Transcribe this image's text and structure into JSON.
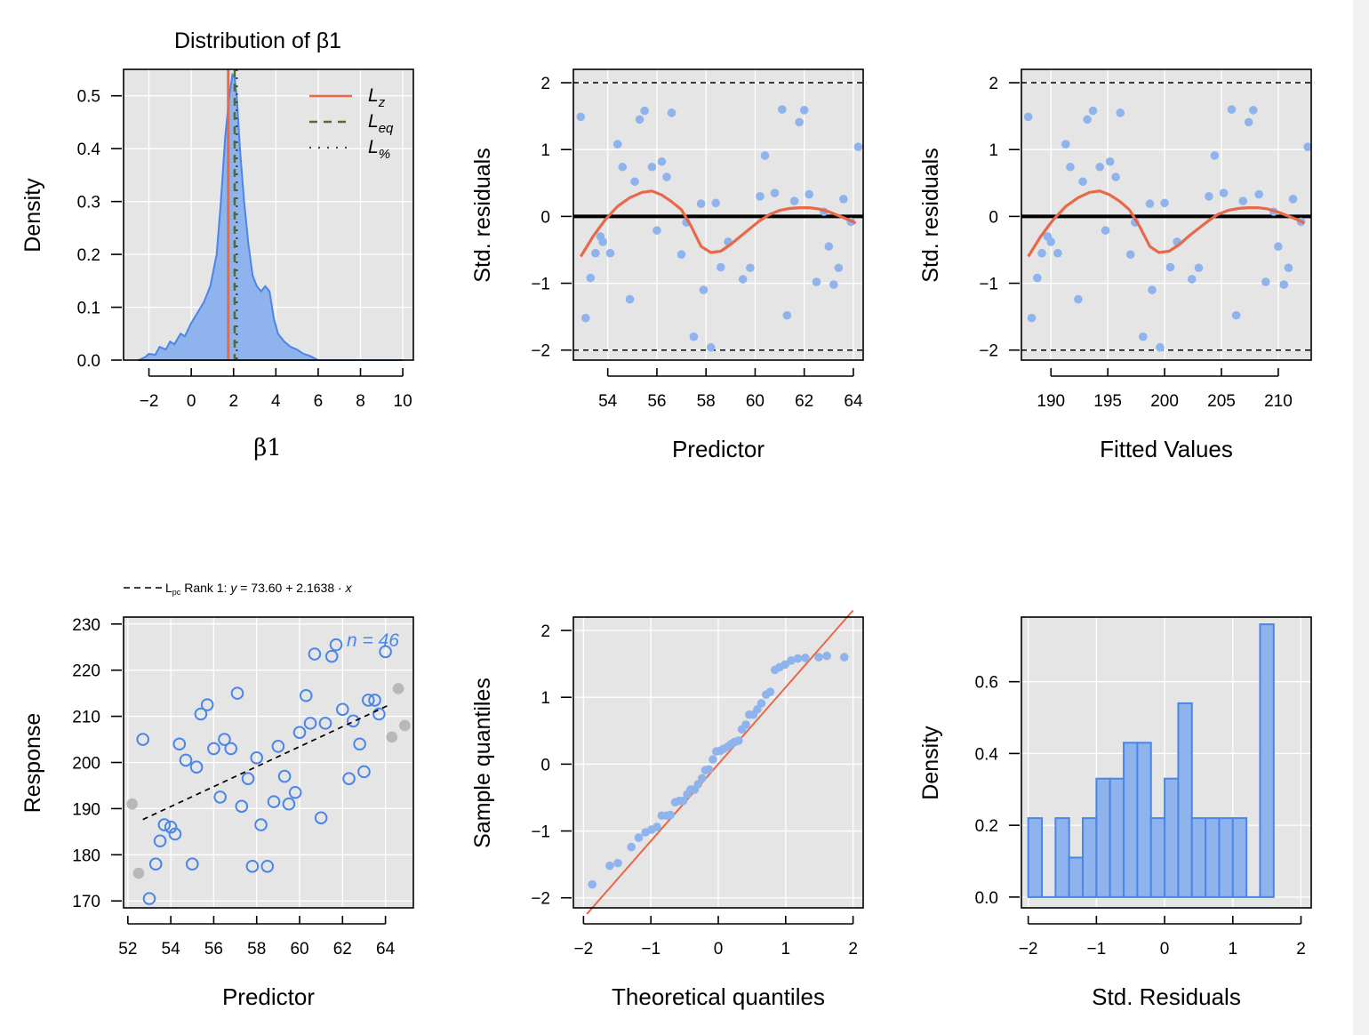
{
  "colors": {
    "panel_bg": "#e5e5e5",
    "grid": "#ffffff",
    "blue": "#4a86e8",
    "blue_fill": "#8fb3ec",
    "blue_point": "#8fb3ec",
    "red": "#e8684a",
    "olive": "#556b2f",
    "navy": "#2f4f6f",
    "gray_point": "#b8b8b8",
    "black": "#000000"
  },
  "chart_data": [
    {
      "id": "p1",
      "type": "area",
      "title": "Distribution of β1",
      "xlabel": "β1",
      "ylabel": "Density",
      "xlim": [
        -3.2,
        10.5
      ],
      "ylim": [
        0,
        0.55
      ],
      "xticks": [
        -2,
        0,
        2,
        4,
        6,
        8,
        10
      ],
      "xtick_labels": [
        "−2",
        "0",
        "2",
        "4",
        "6",
        "8",
        "10"
      ],
      "yticks": [
        0.0,
        0.1,
        0.2,
        0.3,
        0.4,
        0.5
      ],
      "ytick_labels": [
        "0.0",
        "0.1",
        "0.2",
        "0.3",
        "0.4",
        "0.5"
      ],
      "density_x": [
        -2.5,
        -2.2,
        -2.0,
        -1.7,
        -1.5,
        -1.2,
        -1.0,
        -0.8,
        -0.5,
        -0.3,
        0,
        0.3,
        0.6,
        0.9,
        1.2,
        1.4,
        1.6,
        1.8,
        1.95,
        2.05,
        2.15,
        2.3,
        2.5,
        2.7,
        2.9,
        3.1,
        3.3,
        3.5,
        3.7,
        3.9,
        4.1,
        4.4,
        4.7,
        5.0,
        5.3,
        5.6,
        5.9,
        6.0
      ],
      "density_y": [
        0.0,
        0.005,
        0.012,
        0.01,
        0.025,
        0.02,
        0.035,
        0.03,
        0.05,
        0.045,
        0.07,
        0.09,
        0.11,
        0.14,
        0.2,
        0.3,
        0.42,
        0.5,
        0.54,
        0.535,
        0.5,
        0.4,
        0.3,
        0.22,
        0.16,
        0.14,
        0.13,
        0.14,
        0.13,
        0.08,
        0.05,
        0.035,
        0.025,
        0.02,
        0.012,
        0.008,
        0.002,
        0.0
      ],
      "vlines": [
        {
          "name": "L_z",
          "x": 1.75,
          "style": "solid",
          "color": "#e8684a"
        },
        {
          "name": "L_eq",
          "x": 2.05,
          "style": "dashed",
          "color": "#556b2f"
        },
        {
          "name": "L_%",
          "x": 2.15,
          "style": "dotted",
          "color": "#2f4f6f"
        }
      ],
      "legend": {
        "position": "top-right",
        "entries": [
          {
            "main": "L",
            "sub": "z",
            "style": "solid",
            "color": "#e8684a"
          },
          {
            "main": "L",
            "sub": "eq",
            "style": "dashed",
            "color": "#556b2f"
          },
          {
            "main": "L",
            "sub": "%",
            "style": "dotted",
            "color": "#2f4f6f"
          }
        ]
      }
    },
    {
      "id": "p2",
      "type": "scatter",
      "xlabel": "Predictor",
      "ylabel": "Std. residuals",
      "xlim": [
        52.6,
        64.4
      ],
      "ylim": [
        -2.15,
        2.2
      ],
      "xticks": [
        54,
        56,
        58,
        60,
        62,
        64
      ],
      "xtick_labels": [
        "54",
        "56",
        "58",
        "60",
        "62",
        "64"
      ],
      "yticks": [
        -2,
        -1,
        0,
        1,
        2
      ],
      "ytick_labels": [
        "−2",
        "−1",
        "0",
        "1",
        "2"
      ],
      "hlines": [
        {
          "y": 2,
          "style": "dashed"
        },
        {
          "y": -2,
          "style": "dashed"
        },
        {
          "y": 0,
          "style": "solid-thick"
        }
      ],
      "x": [
        52.9,
        53.1,
        53.3,
        53.5,
        53.7,
        53.8,
        54.1,
        54.4,
        54.6,
        54.9,
        55.1,
        55.3,
        55.5,
        55.8,
        56.0,
        56.2,
        56.4,
        56.6,
        57.0,
        57.2,
        57.5,
        57.8,
        57.9,
        58.2,
        58.4,
        58.6,
        58.9,
        59.5,
        59.8,
        60.2,
        60.4,
        60.8,
        61.1,
        61.3,
        61.6,
        61.8,
        62.0,
        62.2,
        62.5,
        62.8,
        63.0,
        63.2,
        63.4,
        63.6,
        63.9,
        64.2
      ],
      "y": [
        1.49,
        -1.52,
        -0.92,
        -0.55,
        -0.3,
        -0.38,
        -0.55,
        1.08,
        0.74,
        -1.24,
        0.52,
        1.45,
        1.58,
        0.74,
        -0.21,
        0.82,
        0.59,
        1.55,
        -0.57,
        -0.09,
        -1.8,
        0.19,
        -1.1,
        -1.96,
        0.2,
        -0.76,
        -0.38,
        -0.94,
        -0.77,
        0.3,
        0.91,
        0.35,
        1.6,
        -1.48,
        0.23,
        1.41,
        1.59,
        0.33,
        -0.98,
        0.07,
        -0.45,
        -1.02,
        -0.77,
        0.26,
        -0.08,
        1.04
      ],
      "smooth_x": [
        52.9,
        53.4,
        53.9,
        54.4,
        54.9,
        55.4,
        55.8,
        56.2,
        56.6,
        57.0,
        57.4,
        57.8,
        58.2,
        58.6,
        59.0,
        59.4,
        59.8,
        60.2,
        60.6,
        61.0,
        61.4,
        61.8,
        62.2,
        62.6,
        63.0,
        63.4,
        63.8,
        64.1
      ],
      "smooth_y": [
        -0.6,
        -0.3,
        -0.05,
        0.15,
        0.28,
        0.36,
        0.38,
        0.32,
        0.22,
        0.1,
        -0.15,
        -0.45,
        -0.54,
        -0.52,
        -0.42,
        -0.3,
        -0.18,
        -0.06,
        0.03,
        0.09,
        0.12,
        0.13,
        0.13,
        0.11,
        0.07,
        0.01,
        -0.05,
        -0.1
      ]
    },
    {
      "id": "p3",
      "type": "scatter",
      "xlabel": "Fitted Values",
      "ylabel": "Std. residuals",
      "xlim": [
        187.4,
        212.9
      ],
      "ylim": [
        -2.15,
        2.2
      ],
      "xticks": [
        190,
        195,
        200,
        205,
        210
      ],
      "xtick_labels": [
        "190",
        "195",
        "200",
        "205",
        "210"
      ],
      "yticks": [
        -2,
        -1,
        0,
        1,
        2
      ],
      "ytick_labels": [
        "−2",
        "−1",
        "0",
        "1",
        "2"
      ],
      "hlines": [
        {
          "y": 2,
          "style": "dashed"
        },
        {
          "y": -2,
          "style": "dashed"
        },
        {
          "y": 0,
          "style": "solid-thick"
        }
      ],
      "x": [
        188.0,
        188.3,
        188.8,
        189.2,
        189.7,
        190.0,
        190.6,
        191.3,
        191.7,
        192.4,
        192.8,
        193.2,
        193.7,
        194.3,
        194.8,
        195.2,
        195.7,
        196.1,
        197.0,
        197.4,
        198.1,
        198.7,
        198.9,
        199.6,
        200.0,
        200.5,
        201.1,
        202.4,
        203.0,
        203.9,
        204.4,
        205.2,
        205.9,
        206.3,
        206.9,
        207.4,
        207.8,
        208.3,
        208.9,
        209.6,
        210.0,
        210.5,
        210.9,
        211.3,
        212.0,
        212.6
      ],
      "y": [
        1.49,
        -1.52,
        -0.92,
        -0.55,
        -0.3,
        -0.38,
        -0.55,
        1.08,
        0.74,
        -1.24,
        0.52,
        1.45,
        1.58,
        0.74,
        -0.21,
        0.82,
        0.59,
        1.55,
        -0.57,
        -0.09,
        -1.8,
        0.19,
        -1.1,
        -1.96,
        0.2,
        -0.76,
        -0.38,
        -0.94,
        -0.77,
        0.3,
        0.91,
        0.35,
        1.6,
        -1.48,
        0.23,
        1.41,
        1.59,
        0.33,
        -0.98,
        0.07,
        -0.45,
        -1.02,
        -0.77,
        0.26,
        -0.08,
        1.04
      ],
      "smooth_x": [
        188.0,
        189.1,
        190.2,
        191.3,
        192.4,
        193.4,
        194.3,
        195.2,
        196.1,
        196.9,
        197.8,
        198.7,
        199.5,
        200.4,
        201.3,
        202.1,
        203.0,
        203.9,
        204.7,
        205.6,
        206.5,
        207.3,
        208.2,
        209.1,
        209.9,
        210.8,
        211.7,
        212.3
      ],
      "smooth_y": [
        -0.6,
        -0.3,
        -0.05,
        0.15,
        0.28,
        0.36,
        0.38,
        0.32,
        0.22,
        0.1,
        -0.15,
        -0.45,
        -0.54,
        -0.52,
        -0.42,
        -0.3,
        -0.18,
        -0.06,
        0.03,
        0.09,
        0.12,
        0.13,
        0.13,
        0.11,
        0.07,
        0.01,
        -0.05,
        -0.1
      ]
    },
    {
      "id": "p4",
      "type": "scatter",
      "xlabel": "Predictor",
      "ylabel": "Response",
      "xlim": [
        51.8,
        65.3
      ],
      "ylim": [
        168.5,
        231.5
      ],
      "xticks": [
        52,
        54,
        56,
        58,
        60,
        62,
        64
      ],
      "xtick_labels": [
        "52",
        "54",
        "56",
        "58",
        "60",
        "62",
        "64"
      ],
      "yticks": [
        170,
        180,
        190,
        200,
        210,
        220,
        230
      ],
      "ytick_labels": [
        "170",
        "180",
        "190",
        "200",
        "210",
        "220",
        "230"
      ],
      "annotation": "n = 46",
      "legend": {
        "prefix": "L",
        "sub": "pc",
        "text": "Rank 1: ",
        "y_var": "y",
        "equation": " = 73.60  +  2.1638 · ",
        "x_var": "x"
      },
      "fit_line": {
        "x": [
          52.7,
          64.2
        ],
        "intercept": 73.6,
        "slope": 2.1638
      },
      "x": [
        52.7,
        53.0,
        53.3,
        53.5,
        53.7,
        54.0,
        54.2,
        54.4,
        54.7,
        55.0,
        55.2,
        55.4,
        55.7,
        56.0,
        56.3,
        56.5,
        56.8,
        57.1,
        57.3,
        57.6,
        57.8,
        58.0,
        58.2,
        58.5,
        58.8,
        59.0,
        59.3,
        59.5,
        59.8,
        60.0,
        60.3,
        60.5,
        60.7,
        61.0,
        61.2,
        61.5,
        61.7,
        62.0,
        62.3,
        62.5,
        62.8,
        63.0,
        63.2,
        63.5,
        63.7,
        64.0
      ],
      "y": [
        205,
        170.5,
        178,
        183,
        186.5,
        186,
        184.5,
        204,
        200.5,
        178,
        199,
        210.5,
        212.5,
        203,
        192.5,
        205,
        203,
        215,
        190.5,
        196.5,
        177.5,
        201,
        186.5,
        177.5,
        191.5,
        203.5,
        197,
        191,
        193.5,
        206.5,
        214.5,
        208.5,
        223.5,
        188,
        208.5,
        223,
        225.5,
        211.5,
        196.5,
        209,
        204,
        198,
        213.5,
        213.5,
        210.5,
        224
      ],
      "outliers_x": [
        52.2,
        52.5,
        64.3,
        64.6,
        64.9
      ],
      "outliers_y": [
        191,
        176,
        205.5,
        216,
        208
      ]
    },
    {
      "id": "p5",
      "type": "scatter",
      "xlabel": "Theoretical quantiles",
      "ylabel": "Sample quantiles",
      "xlim": [
        -2.15,
        2.15
      ],
      "ylim": [
        -2.15,
        2.2
      ],
      "xticks": [
        -2,
        -1,
        0,
        1,
        2
      ],
      "xtick_labels": [
        "−2",
        "−1",
        "0",
        "1",
        "2"
      ],
      "yticks": [
        -2,
        -1,
        0,
        1,
        2
      ],
      "ytick_labels": [
        "−2",
        "−1",
        "0",
        "1",
        "2"
      ],
      "x": [
        -1.87,
        -1.61,
        -1.49,
        -1.29,
        -1.18,
        -1.08,
        -0.99,
        -0.91,
        -0.84,
        -0.77,
        -0.71,
        -0.64,
        -0.58,
        -0.52,
        -0.46,
        -0.41,
        -0.35,
        -0.3,
        -0.24,
        -0.19,
        -0.14,
        -0.08,
        -0.03,
        0.03,
        0.08,
        0.14,
        0.19,
        0.24,
        0.3,
        0.35,
        0.41,
        0.46,
        0.52,
        0.58,
        0.64,
        0.71,
        0.77,
        0.84,
        0.91,
        0.99,
        1.08,
        1.18,
        1.29,
        1.49,
        1.61,
        1.87
      ],
      "y": [
        -1.8,
        -1.52,
        -1.48,
        -1.24,
        -1.1,
        -1.02,
        -0.98,
        -0.94,
        -0.77,
        -0.77,
        -0.76,
        -0.57,
        -0.55,
        -0.55,
        -0.45,
        -0.38,
        -0.38,
        -0.3,
        -0.21,
        -0.09,
        -0.08,
        0.07,
        0.19,
        0.2,
        0.23,
        0.26,
        0.3,
        0.33,
        0.35,
        0.52,
        0.59,
        0.74,
        0.74,
        0.82,
        0.91,
        1.04,
        1.08,
        1.41,
        1.45,
        1.49,
        1.55,
        1.58,
        1.59,
        1.6,
        1.62,
        1.6
      ],
      "ref_line": {
        "x": [
          -1.95,
          2.0
        ],
        "intercept": 0.0,
        "slope": 1.15
      }
    },
    {
      "id": "p6",
      "type": "bar",
      "xlabel": "Std. Residuals",
      "ylabel": "Density",
      "xlim": [
        -2.1,
        2.15
      ],
      "ylim": [
        -0.03,
        0.78
      ],
      "xticks": [
        -2,
        -1,
        0,
        1,
        2
      ],
      "xtick_labels": [
        "−2",
        "−1",
        "0",
        "1",
        "2"
      ],
      "yticks": [
        0.0,
        0.2,
        0.4,
        0.6
      ],
      "ytick_labels": [
        "0.0",
        "0.2",
        "0.4",
        "0.6"
      ],
      "bin_edges": [
        -2.0,
        -1.8,
        -1.6,
        -1.4,
        -1.2,
        -1.0,
        -0.8,
        -0.6,
        -0.4,
        -0.2,
        0.0,
        0.2,
        0.4,
        0.6,
        0.8,
        1.0,
        1.2,
        1.4,
        1.6
      ],
      "values": [
        0.22,
        0.0,
        0.22,
        0.11,
        0.22,
        0.33,
        0.33,
        0.43,
        0.43,
        0.22,
        0.33,
        0.54,
        0.22,
        0.22,
        0.22,
        0.22,
        0.0,
        0.76
      ]
    }
  ]
}
